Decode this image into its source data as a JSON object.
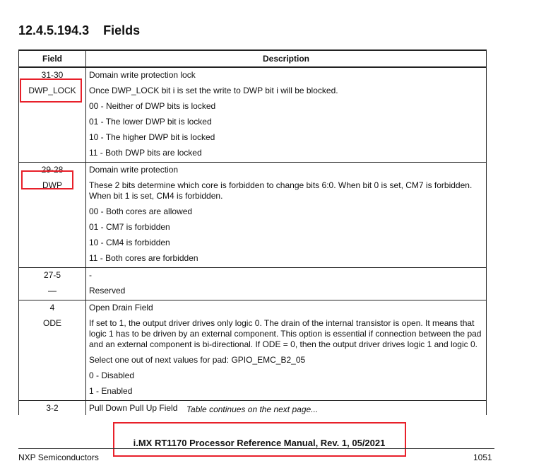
{
  "section_title": "12.4.5.194.3    Fields",
  "table": {
    "headers": [
      "Field",
      "Description"
    ],
    "rows": [
      {
        "bits": "31-30",
        "name": "DWP_LOCK",
        "desc": [
          "Domain write protection lock",
          "Once DWP_LOCK bit i is set the write to DWP bit i will be blocked.",
          "00 - Neither of DWP bits is locked",
          "01 - The lower DWP bit is locked",
          "10 - The higher DWP bit is locked",
          "11 - Both DWP bits are locked"
        ]
      },
      {
        "bits": "29-28",
        "name": "DWP",
        "desc": [
          "Domain write protection",
          "These 2 bits determine which core is forbidden to change bits 6:0. When bit 0 is set, CM7 is forbidden. When bit 1 is set, CM4 is forbidden.",
          "00 - Both cores are allowed",
          "01 - CM7 is forbidden",
          "10 - CM4 is forbidden",
          "11 - Both cores are forbidden"
        ]
      },
      {
        "bits": "27-5",
        "name": "—",
        "desc": [
          "-",
          "Reserved"
        ]
      },
      {
        "bits": "4",
        "name": "ODE",
        "desc": [
          "Open Drain Field",
          "If set to 1, the output driver drives only logic 0. The drain of the internal transistor is open. It means that logic 1 has to be driven by an external component. This option is essential if connection between the pad and an external component is bi-directional. If ODE = 0, then the output driver drives logic 1 and logic 0.",
          "Select one out of next values for pad: GPIO_EMC_B2_05",
          "0 - Disabled",
          "1 - Enabled"
        ]
      },
      {
        "bits": "3-2",
        "desc": [
          "Pull Down Pull Up Field"
        ]
      }
    ]
  },
  "continuation": "Table continues on the next page...",
  "footer": {
    "manual": "i.MX RT1170 Processor Reference Manual, Rev. 1, 05/2021",
    "company": "NXP Semiconductors",
    "page": "1051"
  },
  "highlight_color": "#e8202a"
}
